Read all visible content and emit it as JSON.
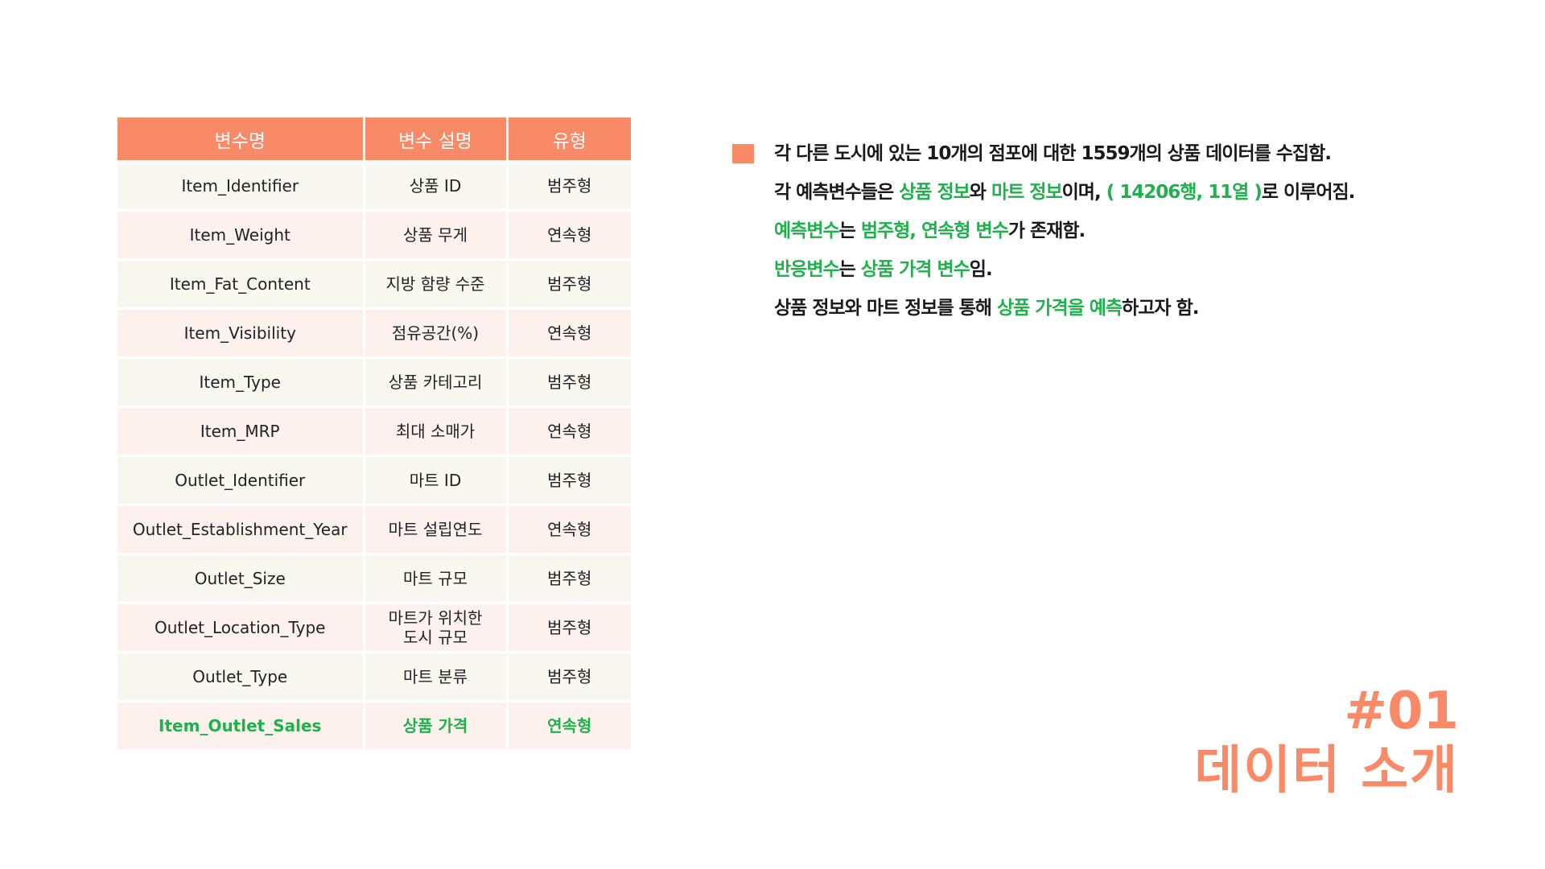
{
  "table": {
    "headers": [
      "변수명",
      "변수 설명",
      "유형"
    ],
    "rows": [
      {
        "name": "Item_Identifier",
        "desc": "상품 ID",
        "type": "범주형"
      },
      {
        "name": "Item_Weight",
        "desc": "상품 무게",
        "type": "연속형"
      },
      {
        "name": "Item_Fat_Content",
        "desc": "지방 함량 수준",
        "type": "범주형"
      },
      {
        "name": "Item_Visibility",
        "desc": "점유공간(%)",
        "type": "연속형"
      },
      {
        "name": "Item_Type",
        "desc": "상품 카테고리",
        "type": "범주형"
      },
      {
        "name": "Item_MRP",
        "desc": "최대 소매가",
        "type": "연속형"
      },
      {
        "name": "Outlet_Identifier",
        "desc": "마트 ID",
        "type": "범주형"
      },
      {
        "name": "Outlet_Establishment_Year",
        "desc": "마트 설립연도",
        "type": "연속형"
      },
      {
        "name": "Outlet_Size",
        "desc": "마트 규모",
        "type": "범주형"
      },
      {
        "name": "Outlet_Location_Type",
        "desc": "마트가 위치한 도시 규모",
        "type": "범주형"
      },
      {
        "name": "Outlet_Type",
        "desc": "마트 분류",
        "type": "범주형"
      },
      {
        "name": "Item_Outlet_Sales",
        "desc": "상품 가격",
        "type": "연속형"
      }
    ]
  },
  "description": {
    "line1": "각 다른 도시에 있는 10개의 점포에 대한 1559개의 상품 데이터를 수집함.",
    "line2": {
      "p1": "각 예측변수들은 ",
      "p2": "상품 정보",
      "p3": "와 ",
      "p4": "마트 정보",
      "p5": "이며, ",
      "p6": "( 14206행, 11열 )",
      "p7": "로 이루어짐."
    },
    "line3": {
      "p1": "예측변수",
      "p2": "는 ",
      "p3": "범주형, 연속형 변수",
      "p4": "가 존재함."
    },
    "line4": {
      "p1": "반응변수",
      "p2": "는 ",
      "p3": "상품 가격 변수",
      "p4": "임."
    },
    "line5": {
      "p1": "상품 정보와 마트 정보를 통해 ",
      "p2": "상품 가격을 예측",
      "p3": "하고자 함."
    }
  },
  "title": {
    "number": "#01",
    "main": "데이터 소개"
  },
  "colors": {
    "accent": "#f98a68",
    "highlight_green": "#1fb14c",
    "row_odd": "#f8f8f1",
    "row_even": "#fcf1ec"
  }
}
